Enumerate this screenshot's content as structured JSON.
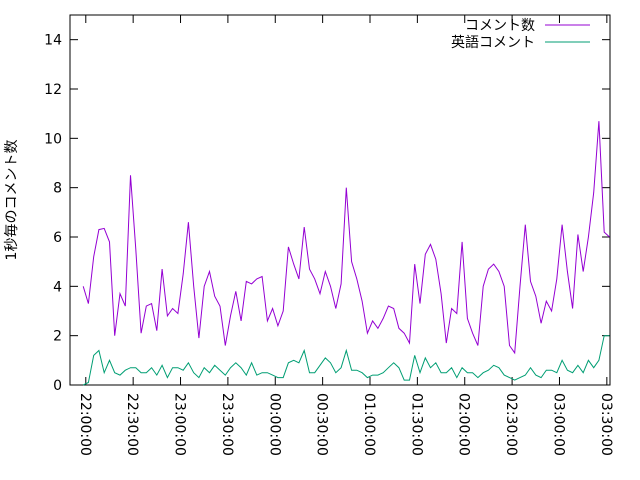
{
  "chart_data": {
    "type": "line",
    "y_label": "1秒毎のコメント数",
    "x": [
      "21:58:20",
      "22:01:40",
      "22:05:00",
      "22:08:20",
      "22:11:40",
      "22:15:00",
      "22:18:20",
      "22:21:40",
      "22:25:00",
      "22:28:20",
      "22:31:40",
      "22:35:00",
      "22:38:20",
      "22:41:40",
      "22:45:00",
      "22:48:20",
      "22:51:40",
      "22:55:00",
      "22:58:20",
      "23:01:40",
      "23:05:00",
      "23:08:20",
      "23:11:40",
      "23:15:00",
      "23:18:20",
      "23:21:40",
      "23:25:00",
      "23:28:20",
      "23:31:40",
      "23:35:00",
      "23:38:20",
      "23:41:40",
      "23:45:00",
      "23:48:20",
      "23:51:40",
      "23:55:00",
      "23:58:20",
      "00:01:40",
      "00:05:00",
      "00:08:20",
      "00:11:40",
      "00:15:00",
      "00:18:20",
      "00:21:40",
      "00:25:00",
      "00:28:20",
      "00:31:40",
      "00:35:00",
      "00:38:20",
      "00:41:40",
      "00:45:00",
      "00:48:20",
      "00:51:40",
      "00:55:00",
      "00:58:20",
      "01:01:40",
      "01:05:00",
      "01:08:20",
      "01:11:40",
      "01:15:00",
      "01:18:20",
      "01:21:40",
      "01:25:00",
      "01:28:20",
      "01:31:40",
      "01:35:00",
      "01:38:20",
      "01:41:40",
      "01:45:00",
      "01:48:20",
      "01:51:40",
      "01:55:00",
      "01:58:20",
      "02:01:40",
      "02:05:00",
      "02:08:20",
      "02:11:40",
      "02:15:00",
      "02:18:20",
      "02:21:40",
      "02:25:00",
      "02:28:20",
      "02:31:40",
      "02:35:00",
      "02:38:20",
      "02:41:40",
      "02:45:00",
      "02:48:20",
      "02:51:40",
      "02:55:00",
      "02:58:20",
      "03:01:40",
      "03:05:00",
      "03:08:20",
      "03:11:40",
      "03:15:00",
      "03:18:20",
      "03:21:40",
      "03:25:00",
      "03:28:20",
      "03:31:40"
    ],
    "series": [
      {
        "name": "コメント数",
        "color": "#9400d3",
        "values": [
          4.0,
          3.3,
          5.2,
          6.3,
          6.35,
          5.8,
          2.0,
          3.7,
          3.2,
          8.5,
          5.5,
          2.1,
          3.2,
          3.3,
          2.2,
          4.7,
          2.8,
          3.1,
          2.9,
          4.5,
          6.6,
          4.0,
          1.9,
          4.0,
          4.6,
          3.6,
          3.2,
          1.6,
          2.8,
          3.8,
          2.6,
          4.2,
          4.1,
          4.3,
          4.4,
          2.6,
          3.1,
          2.4,
          3.0,
          5.6,
          4.9,
          4.3,
          6.4,
          4.7,
          4.3,
          3.7,
          4.6,
          4.0,
          3.1,
          4.1,
          8.0,
          5.0,
          4.3,
          3.4,
          2.1,
          2.6,
          2.3,
          2.7,
          3.2,
          3.1,
          2.3,
          2.1,
          1.7,
          4.9,
          3.3,
          5.3,
          5.7,
          5.1,
          3.7,
          1.7,
          3.1,
          2.9,
          5.8,
          2.7,
          2.1,
          1.6,
          4.0,
          4.7,
          4.9,
          4.6,
          4.0,
          1.6,
          1.3,
          4.0,
          6.5,
          4.2,
          3.6,
          2.5,
          3.4,
          3.0,
          4.3,
          6.5,
          4.6,
          3.1,
          6.1,
          4.6,
          6.0,
          7.8,
          10.7,
          6.2,
          6.0
        ]
      },
      {
        "name": "英語コメント",
        "color": "#009e73",
        "values": [
          0.0,
          0.1,
          1.2,
          1.4,
          0.5,
          1.0,
          0.5,
          0.4,
          0.6,
          0.7,
          0.7,
          0.5,
          0.5,
          0.7,
          0.4,
          0.8,
          0.3,
          0.7,
          0.7,
          0.6,
          0.9,
          0.5,
          0.3,
          0.7,
          0.5,
          0.8,
          0.6,
          0.4,
          0.7,
          0.9,
          0.7,
          0.4,
          0.9,
          0.4,
          0.5,
          0.5,
          0.4,
          0.3,
          0.3,
          0.9,
          1.0,
          0.9,
          1.4,
          0.5,
          0.5,
          0.8,
          1.1,
          0.9,
          0.5,
          0.7,
          1.4,
          0.6,
          0.6,
          0.5,
          0.3,
          0.4,
          0.4,
          0.5,
          0.7,
          0.9,
          0.7,
          0.2,
          0.2,
          1.2,
          0.5,
          1.1,
          0.7,
          0.9,
          0.5,
          0.5,
          0.7,
          0.3,
          0.7,
          0.5,
          0.5,
          0.3,
          0.5,
          0.6,
          0.8,
          0.7,
          0.4,
          0.3,
          0.2,
          0.3,
          0.4,
          0.7,
          0.4,
          0.3,
          0.6,
          0.6,
          0.5,
          1.0,
          0.6,
          0.5,
          0.8,
          0.5,
          1.0,
          0.7,
          1.0,
          2.0,
          2.0
        ]
      }
    ],
    "xlim": [
      "21:50:00",
      "03:32:00"
    ],
    "xticks": [
      "22:00:00",
      "22:30:00",
      "23:00:00",
      "23:30:00",
      "00:00:00",
      "00:30:00",
      "01:00:00",
      "01:30:00",
      "02:00:00",
      "02:30:00",
      "03:00:00",
      "03:30:00"
    ],
    "ylim": [
      0,
      15
    ],
    "yticks": [
      0,
      2,
      4,
      6,
      8,
      10,
      12,
      14
    ],
    "legend": "top-right",
    "grid": false
  }
}
